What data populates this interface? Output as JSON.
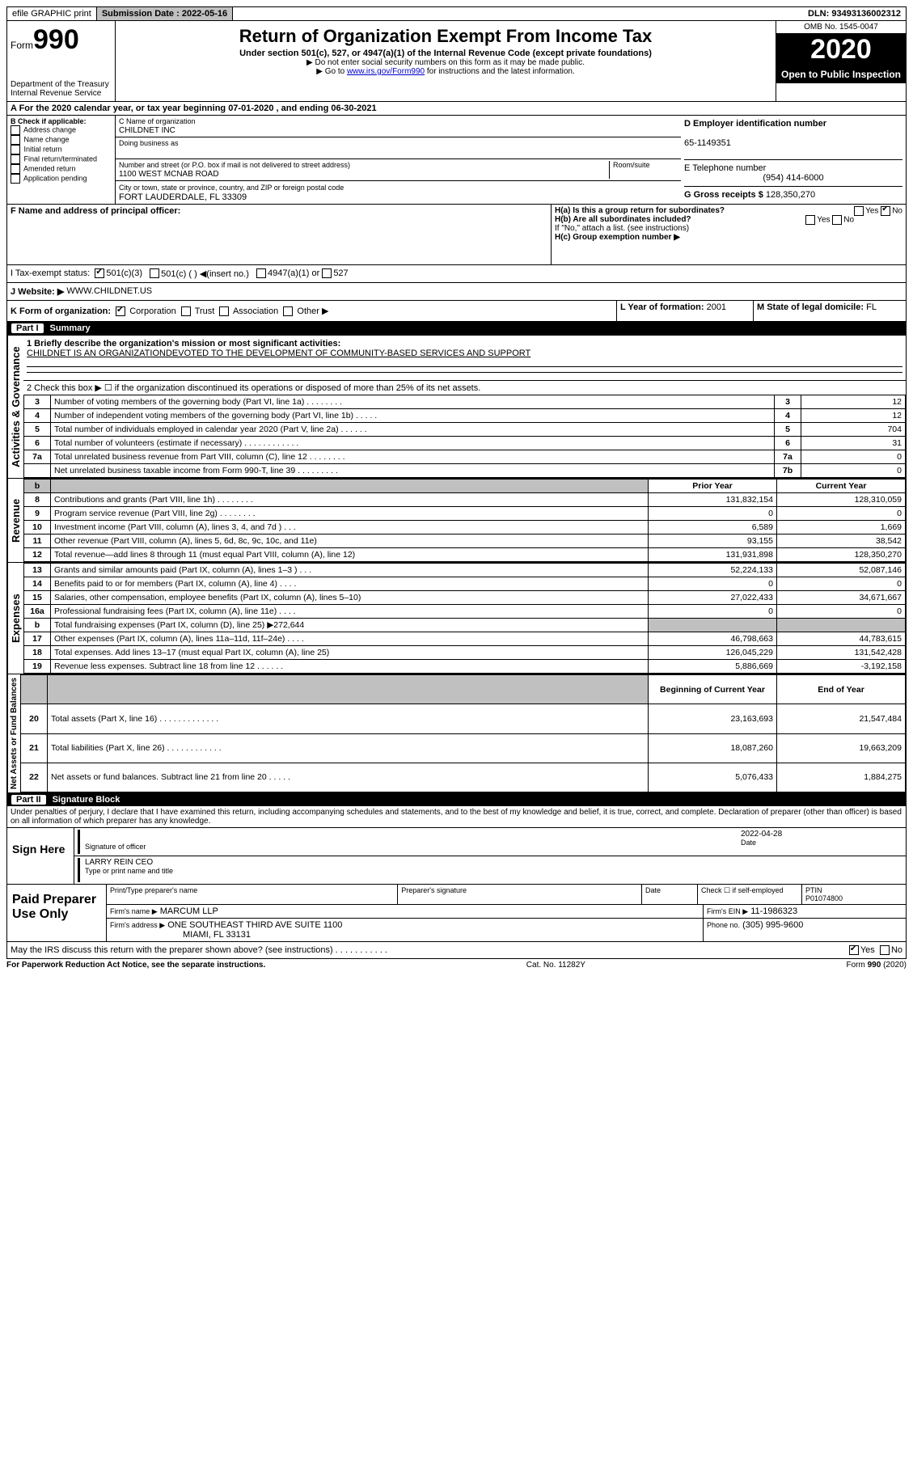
{
  "topbar": {
    "efile": "efile GRAPHIC print",
    "submission_label": "Submission Date : 2022-05-16",
    "dln": "DLN: 93493136002312"
  },
  "header": {
    "form_label": "Form",
    "form_number": "990",
    "dept": "Department of the Treasury\nInternal Revenue Service",
    "title": "Return of Organization Exempt From Income Tax",
    "subtitle": "Under section 501(c), 527, or 4947(a)(1) of the Internal Revenue Code (except private foundations)",
    "note1": "▶ Do not enter social security numbers on this form as it may be made public.",
    "note2_pre": "▶ Go to ",
    "note2_link": "www.irs.gov/Form990",
    "note2_post": " for instructions and the latest information.",
    "omb": "OMB No. 1545-0047",
    "year": "2020",
    "inspection": "Open to Public Inspection"
  },
  "period": {
    "line": "A For the 2020 calendar year, or tax year beginning 07-01-2020    , and ending 06-30-2021"
  },
  "blockB": {
    "heading": "B Check if applicable:",
    "items": [
      "Address change",
      "Name change",
      "Initial return",
      "Final return/terminated",
      "Amended return",
      "Application pending"
    ]
  },
  "blockC": {
    "name_label": "C Name of organization",
    "name": "CHILDNET INC",
    "dba_label": "Doing business as",
    "dba": "",
    "street_label": "Number and street (or P.O. box if mail is not delivered to street address)",
    "room_label": "Room/suite",
    "street": "1100 WEST MCNAB ROAD",
    "city_label": "City or town, state or province, country, and ZIP or foreign postal code",
    "city": "FORT LAUDERDALE, FL  33309"
  },
  "blockD": {
    "label": "D Employer identification number",
    "value": "65-1149351"
  },
  "blockE": {
    "label": "E Telephone number",
    "value": "(954) 414-6000"
  },
  "blockG": {
    "label": "G Gross receipts $",
    "value": "128,350,270"
  },
  "blockF": {
    "label": "F Name and address of principal officer:"
  },
  "blockH": {
    "a": "H(a)  Is this a group return for subordinates?",
    "a_yes": "Yes",
    "a_no": "No",
    "b": "H(b)  Are all subordinates included?",
    "b_note": "If \"No,\" attach a list. (see instructions)",
    "c": "H(c)  Group exemption number ▶"
  },
  "taxExempt": {
    "label": "I   Tax-exempt status:",
    "opt1": "501(c)(3)",
    "opt2": "501(c) (  ) ◀(insert no.)",
    "opt3": "4947(a)(1) or",
    "opt4": "527"
  },
  "blockJ": {
    "label": "J   Website: ▶",
    "value": "WWW.CHILDNET.US"
  },
  "blockK": {
    "label": "K Form of organization:",
    "corp": "Corporation",
    "trust": "Trust",
    "assoc": "Association",
    "other": "Other ▶"
  },
  "blockL": {
    "label": "L Year of formation:",
    "value": "2001"
  },
  "blockM": {
    "label": "M State of legal domicile:",
    "value": "FL"
  },
  "part1": {
    "num": "Part I",
    "title": "Summary"
  },
  "summary": {
    "q1_label": "1  Briefly describe the organization's mission or most significant activities:",
    "q1_value": "CHILDNET IS AN ORGANIZATIONDEVOTED TO THE DEVELOPMENT OF COMMUNITY-BASED SERVICES AND SUPPORT",
    "q2": "2   Check this box ▶ ☐  if the organization discontinued its operations or disposed of more than 25% of its net assets.",
    "rows_gov": [
      {
        "n": "3",
        "label": "Number of voting members of the governing body (Part VI, line 1a)  .    .    .    .    .    .    .    .",
        "box": "3",
        "val": "12"
      },
      {
        "n": "4",
        "label": "Number of independent voting members of the governing body (Part VI, line 1b)  .    .    .    .    .",
        "box": "4",
        "val": "12"
      },
      {
        "n": "5",
        "label": "Total number of individuals employed in calendar year 2020 (Part V, line 2a)  .    .    .    .    .    .",
        "box": "5",
        "val": "704"
      },
      {
        "n": "6",
        "label": "Total number of volunteers (estimate if necessary)  .    .    .    .    .    .    .    .    .    .    .    .",
        "box": "6",
        "val": "31"
      },
      {
        "n": "7a",
        "label": "Total unrelated business revenue from Part VIII, column (C), line 12  .    .    .    .    .    .    .    .",
        "box": "7a",
        "val": "0"
      },
      {
        "n": "",
        "label": "Net unrelated business taxable income from Form 990-T, line 39  .    .    .    .    .    .    .    .    .",
        "box": "7b",
        "val": "0"
      }
    ],
    "col_prior": "Prior Year",
    "col_current": "Current Year",
    "rows_rev": [
      {
        "n": "8",
        "label": "Contributions and grants (Part VIII, line 1h)   .    .    .    .    .    .    .    .",
        "p": "131,832,154",
        "c": "128,310,059"
      },
      {
        "n": "9",
        "label": "Program service revenue (Part VIII, line 2g)   .    .    .    .    .    .    .    .",
        "p": "0",
        "c": "0"
      },
      {
        "n": "10",
        "label": "Investment income (Part VIII, column (A), lines 3, 4, and 7d )   .    .    .",
        "p": "6,589",
        "c": "1,669"
      },
      {
        "n": "11",
        "label": "Other revenue (Part VIII, column (A), lines 5, 6d, 8c, 9c, 10c, and 11e)",
        "p": "93,155",
        "c": "38,542"
      },
      {
        "n": "12",
        "label": "Total revenue—add lines 8 through 11 (must equal Part VIII, column (A), line 12)",
        "p": "131,931,898",
        "c": "128,350,270"
      }
    ],
    "rows_exp": [
      {
        "n": "13",
        "label": "Grants and similar amounts paid (Part IX, column (A), lines 1–3 )  .    .    .",
        "p": "52,224,133",
        "c": "52,087,146"
      },
      {
        "n": "14",
        "label": "Benefits paid to or for members (Part IX, column (A), line 4)  .    .    .    .",
        "p": "0",
        "c": "0"
      },
      {
        "n": "15",
        "label": "Salaries, other compensation, employee benefits (Part IX, column (A), lines 5–10)",
        "p": "27,022,433",
        "c": "34,671,667"
      },
      {
        "n": "16a",
        "label": "Professional fundraising fees (Part IX, column (A), line 11e)  .    .    .    .",
        "p": "0",
        "c": "0"
      },
      {
        "n": "b",
        "label": "Total fundraising expenses (Part IX, column (D), line 25) ▶272,644",
        "p": "",
        "c": "",
        "shade": true
      },
      {
        "n": "17",
        "label": "Other expenses (Part IX, column (A), lines 11a–11d, 11f–24e)  .    .    .    .",
        "p": "46,798,663",
        "c": "44,783,615"
      },
      {
        "n": "18",
        "label": "Total expenses. Add lines 13–17 (must equal Part IX, column (A), line 25)",
        "p": "126,045,229",
        "c": "131,542,428"
      },
      {
        "n": "19",
        "label": "Revenue less expenses. Subtract line 18 from line 12  .    .    .    .    .    .",
        "p": "5,886,669",
        "c": "-3,192,158"
      }
    ],
    "col_begin": "Beginning of Current Year",
    "col_end": "End of Year",
    "rows_net": [
      {
        "n": "20",
        "label": "Total assets (Part X, line 16)  .    .    .    .    .    .    .    .    .    .    .    .    .",
        "p": "23,163,693",
        "c": "21,547,484"
      },
      {
        "n": "21",
        "label": "Total liabilities (Part X, line 26)  .    .    .    .    .    .    .    .    .    .    .    .",
        "p": "18,087,260",
        "c": "19,663,209"
      },
      {
        "n": "22",
        "label": "Net assets or fund balances. Subtract line 21 from line 20  .    .    .    .    .",
        "p": "5,076,433",
        "c": "1,884,275"
      }
    ]
  },
  "part2": {
    "num": "Part II",
    "title": "Signature Block"
  },
  "penalty": "Under penalties of perjury, I declare that I have examined this return, including accompanying schedules and statements, and to the best of my knowledge and belief, it is true, correct, and complete. Declaration of preparer (other than officer) is based on all information of which preparer has any knowledge.",
  "sign": {
    "here": "Sign Here",
    "sig_label": "Signature of officer",
    "date_label": "Date",
    "date": "2022-04-28",
    "name": "LARRY REIN  CEO",
    "name_label": "Type or print name and title"
  },
  "prep": {
    "here": "Paid Preparer Use Only",
    "cols": [
      "Print/Type preparer's name",
      "Preparer's signature",
      "Date"
    ],
    "check_label": "Check ☐ if self-employed",
    "ptin_label": "PTIN",
    "ptin": "P01074800",
    "firm_label": "Firm's name   ▶",
    "firm": "MARCUM LLP",
    "ein_label": "Firm's EIN ▶",
    "ein": "11-1986323",
    "addr_label": "Firm's address ▶",
    "addr": "ONE SOUTHEAST THIRD AVE SUITE 1100",
    "addr2": "MIAMI, FL  33131",
    "phone_label": "Phone no.",
    "phone": "(305) 995-9600"
  },
  "discuss": {
    "q": "May the IRS discuss this return with the preparer shown above? (see instructions)   .    .    .    .    .    .    .    .    .    .    .",
    "yes": "Yes",
    "no": "No"
  },
  "footer": {
    "left": "For Paperwork Reduction Act Notice, see the separate instructions.",
    "mid": "Cat. No. 11282Y",
    "right": "Form 990 (2020)"
  },
  "vlabels": {
    "gov": "Activities & Governance",
    "rev": "Revenue",
    "exp": "Expenses",
    "net": "Net Assets or Fund Balances"
  }
}
